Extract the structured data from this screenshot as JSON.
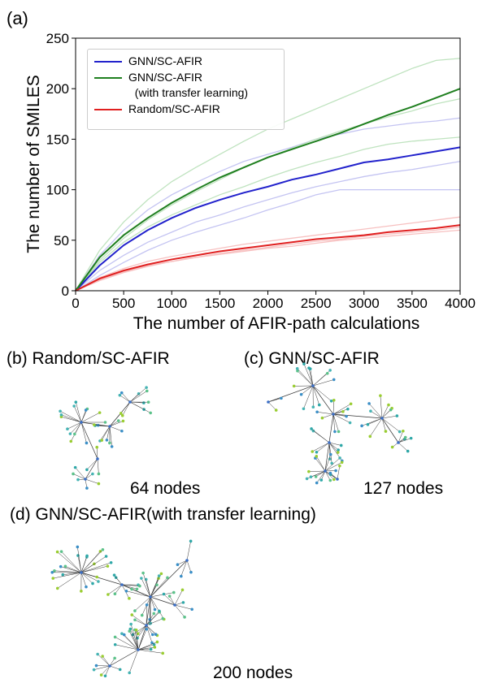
{
  "panel_a": "(a)",
  "chart_data": {
    "type": "line",
    "x_label": "The number of AFIR-path calculations",
    "y_label": "The number of SMILES",
    "x": [
      0,
      250,
      500,
      750,
      1000,
      1250,
      1500,
      1750,
      2000,
      2250,
      2500,
      2750,
      3000,
      3250,
      3500,
      3750,
      4000
    ],
    "xlim": [
      0,
      4000
    ],
    "xticks": [
      0,
      500,
      1000,
      1500,
      2000,
      2500,
      3000,
      3500,
      4000
    ],
    "ylim": [
      0,
      250
    ],
    "yticks": [
      0,
      50,
      100,
      150,
      200,
      250
    ],
    "series": [
      {
        "color": "#c4c4f2",
        "values": [
          0,
          35,
          60,
          80,
          95,
          107,
          118,
          128,
          135,
          142,
          150,
          155,
          160,
          163,
          166,
          168,
          171
        ]
      },
      {
        "color": "#c4c4f2",
        "values": [
          0,
          15,
          28,
          40,
          50,
          58,
          65,
          72,
          80,
          87,
          95,
          100,
          100,
          100,
          100,
          100,
          100
        ]
      },
      {
        "color": "#c4c4f2",
        "values": [
          0,
          20,
          35,
          48,
          58,
          68,
          75,
          83,
          90,
          97,
          103,
          108,
          113,
          117,
          120,
          124,
          128
        ]
      },
      {
        "color": "#bfe3bf",
        "values": [
          0,
          40,
          68,
          90,
          108,
          122,
          135,
          148,
          160,
          170,
          180,
          190,
          200,
          210,
          220,
          228,
          230
        ]
      },
      {
        "color": "#bfe3bf",
        "values": [
          0,
          30,
          52,
          70,
          85,
          98,
          110,
          122,
          132,
          141,
          150,
          158,
          165,
          172,
          178,
          185,
          190
        ]
      },
      {
        "color": "#bfe3bf",
        "values": [
          0,
          28,
          48,
          63,
          75,
          85,
          95,
          103,
          112,
          120,
          127,
          133,
          140,
          145,
          148,
          150,
          152
        ]
      },
      {
        "color": "#f7c0c0",
        "values": [
          0,
          13,
          22,
          29,
          34,
          38,
          42,
          46,
          49,
          52,
          55,
          58,
          61,
          64,
          67,
          70,
          73
        ]
      },
      {
        "color": "#f7c0c0",
        "values": [
          0,
          10,
          18,
          24,
          29,
          33,
          37,
          40,
          43,
          46,
          49,
          51,
          54,
          56,
          58,
          60,
          63
        ]
      },
      {
        "color": "#f7c0c0",
        "values": [
          0,
          11,
          19,
          25,
          29,
          33,
          36,
          39,
          42,
          44,
          47,
          50,
          52,
          54,
          56,
          58,
          60
        ]
      },
      {
        "name": "GNN/SC-AFIR",
        "color": "#2222cc",
        "values": [
          0,
          25,
          45,
          60,
          72,
          82,
          90,
          97,
          103,
          110,
          115,
          121,
          127,
          130,
          134,
          138,
          142
        ]
      },
      {
        "name": "GNN/SC-AFIR\n  (with transfer learning)",
        "color": "#1f7f1f",
        "values": [
          0,
          33,
          55,
          72,
          87,
          100,
          112,
          122,
          132,
          140,
          148,
          156,
          165,
          174,
          182,
          191,
          200
        ]
      },
      {
        "name": "Random/SC-AFIR",
        "color": "#e02020",
        "values": [
          0,
          12,
          20,
          26,
          31,
          35,
          39,
          42,
          45,
          48,
          51,
          53,
          55,
          58,
          60,
          62,
          65
        ]
      }
    ]
  },
  "panels": [
    {
      "label": "(b) Random/SC-AFIR",
      "caption": "64 nodes"
    },
    {
      "label": "(c) GNN/SC-AFIR",
      "caption": "127 nodes"
    },
    {
      "label": "(d) GNN/SC-AFIR(with transfer learning)",
      "caption": "200 nodes"
    }
  ]
}
